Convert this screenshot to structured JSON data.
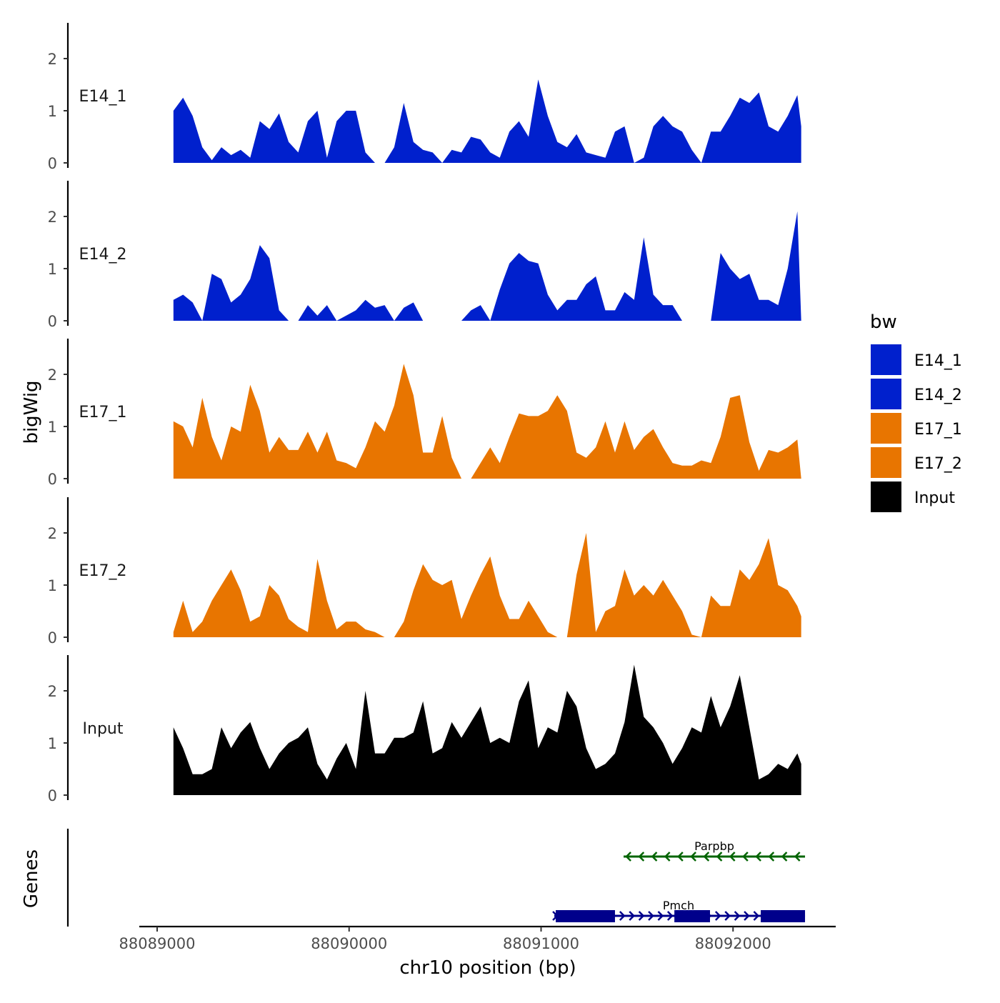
{
  "chart_data": {
    "type": "area",
    "ylabel": "bigWig",
    "xlabel": "chr10 position (bp)",
    "x_ticks": [
      88089000,
      88090000,
      88091000,
      88092000
    ],
    "x_tick_labels": [
      "88089000",
      "88090000",
      "88091000",
      "88092000"
    ],
    "xlim": [
      88088910,
      88092540
    ],
    "y_ticks": [
      0,
      1,
      2
    ],
    "y_tick_labels": [
      "0",
      "1",
      "2"
    ],
    "ylim": [
      0,
      2.7
    ],
    "x_start": 88089085,
    "x_step": 50,
    "legend": {
      "title": "bw",
      "placement": "right",
      "entries": [
        {
          "label": "E14_1",
          "color": "#0020CD"
        },
        {
          "label": "E14_2",
          "color": "#0020CD"
        },
        {
          "label": "E17_1",
          "color": "#E87500"
        },
        {
          "label": "E17_2",
          "color": "#E87500"
        },
        {
          "label": "Input",
          "color": "#000000"
        }
      ]
    },
    "series": [
      {
        "name": "E14_1",
        "color": "#0020CD",
        "values": [
          1.0,
          1.25,
          0.9,
          0.3,
          0.05,
          0.3,
          0.15,
          0.25,
          0.1,
          0.8,
          0.65,
          0.95,
          0.4,
          0.2,
          0.8,
          1.0,
          0.1,
          0.8,
          1.0,
          1.0,
          0.2,
          0,
          0,
          0.3,
          1.15,
          0.4,
          0.25,
          0.2,
          0,
          0.25,
          0.2,
          0.5,
          0.45,
          0.2,
          0.1,
          0.6,
          0.8,
          0.5,
          1.6,
          0.9,
          0.4,
          0.3,
          0.55,
          0.2,
          0.15,
          0.1,
          0.6,
          0.7,
          0,
          0.1,
          0.7,
          0.9,
          0.7,
          0.6,
          0.25,
          0,
          0.6,
          0.6,
          0.9,
          1.25,
          1.15,
          1.35,
          0.7,
          0.6,
          0.9,
          1.3,
          0.7
        ]
      },
      {
        "name": "E14_2",
        "color": "#0020CD",
        "values": [
          0.4,
          0.5,
          0.35,
          0,
          0.9,
          0.8,
          0.35,
          0.5,
          0.8,
          1.45,
          1.2,
          0.2,
          0,
          0,
          0.3,
          0.1,
          0.3,
          0,
          0.1,
          0.2,
          0.4,
          0.25,
          0.3,
          0,
          0.25,
          0.35,
          0,
          0,
          0,
          0,
          0,
          0.2,
          0.3,
          0,
          0.6,
          1.1,
          1.3,
          1.15,
          1.1,
          0.5,
          0.2,
          0.4,
          0.4,
          0.7,
          0.85,
          0.2,
          0.2,
          0.55,
          0.4,
          1.6,
          0.5,
          0.3,
          0.3,
          0,
          0,
          0,
          0,
          1.3,
          1.0,
          0.8,
          0.9,
          0.4,
          0.4,
          0.3,
          1.0,
          2.1,
          0
        ]
      },
      {
        "name": "E17_1",
        "color": "#E87500",
        "values": [
          1.1,
          1.0,
          0.6,
          1.55,
          0.8,
          0.35,
          1.0,
          0.9,
          1.8,
          1.3,
          0.5,
          0.8,
          0.55,
          0.55,
          0.9,
          0.5,
          0.9,
          0.35,
          0.3,
          0.2,
          0.6,
          1.1,
          0.9,
          1.4,
          2.2,
          1.6,
          0.5,
          0.5,
          1.2,
          0.4,
          0,
          0,
          0.3,
          0.6,
          0.3,
          0.8,
          1.25,
          1.2,
          1.2,
          1.3,
          1.6,
          1.3,
          0.5,
          0.4,
          0.6,
          1.1,
          0.5,
          1.1,
          0.55,
          0.8,
          0.95,
          0.6,
          0.3,
          0.25,
          0.25,
          0.35,
          0.3,
          0.8,
          1.55,
          1.6,
          0.7,
          0.15,
          0.55,
          0.5,
          0.6,
          0.75,
          0
        ]
      },
      {
        "name": "E17_2",
        "color": "#E87500",
        "values": [
          0.1,
          0.7,
          0.1,
          0.3,
          0.7,
          1.0,
          1.3,
          0.9,
          0.3,
          0.4,
          1.0,
          0.8,
          0.35,
          0.2,
          0.1,
          1.5,
          0.7,
          0.15,
          0.3,
          0.3,
          0.15,
          0.1,
          0,
          0,
          0.3,
          0.9,
          1.4,
          1.1,
          1.0,
          1.1,
          0.35,
          0.8,
          1.2,
          1.55,
          0.8,
          0.35,
          0.35,
          0.7,
          0.4,
          0.1,
          0,
          0,
          1.2,
          2.0,
          0.1,
          0.5,
          0.6,
          1.3,
          0.8,
          1.0,
          0.8,
          1.1,
          0.8,
          0.5,
          0.05,
          0,
          0.8,
          0.6,
          0.6,
          1.3,
          1.1,
          1.4,
          1.9,
          1.0,
          0.9,
          0.6,
          0.4
        ]
      },
      {
        "name": "Input",
        "color": "#000000",
        "values": [
          1.3,
          0.9,
          0.4,
          0.4,
          0.5,
          1.3,
          0.9,
          1.2,
          1.4,
          0.9,
          0.5,
          0.8,
          1.0,
          1.1,
          1.3,
          0.6,
          0.3,
          0.7,
          1.0,
          0.5,
          2.0,
          0.8,
          0.8,
          1.1,
          1.1,
          1.2,
          1.8,
          0.8,
          0.9,
          1.4,
          1.1,
          1.4,
          1.7,
          1.0,
          1.1,
          1.0,
          1.8,
          2.2,
          0.9,
          1.3,
          1.2,
          2.0,
          1.7,
          0.9,
          0.5,
          0.6,
          0.8,
          1.4,
          2.5,
          1.5,
          1.3,
          1.0,
          0.6,
          0.9,
          1.3,
          1.2,
          1.9,
          1.3,
          1.7,
          2.3,
          1.3,
          0.3,
          0.4,
          0.6,
          0.5,
          0.8,
          0.6
        ]
      }
    ],
    "genes_track": {
      "label": "Genes",
      "genes": [
        {
          "name": "Parpbp",
          "strand": "-",
          "start": 88091430,
          "end": 88092375,
          "color": "#006400",
          "exons": []
        },
        {
          "name": "Pmch",
          "strand": "+",
          "start": 88091069,
          "end": 88092375,
          "color": "#00008B",
          "exons": [
            [
              88091069,
              88091385
            ],
            [
              88091687,
              88091880
            ],
            [
              88092137,
              88092375
            ]
          ]
        }
      ]
    }
  }
}
